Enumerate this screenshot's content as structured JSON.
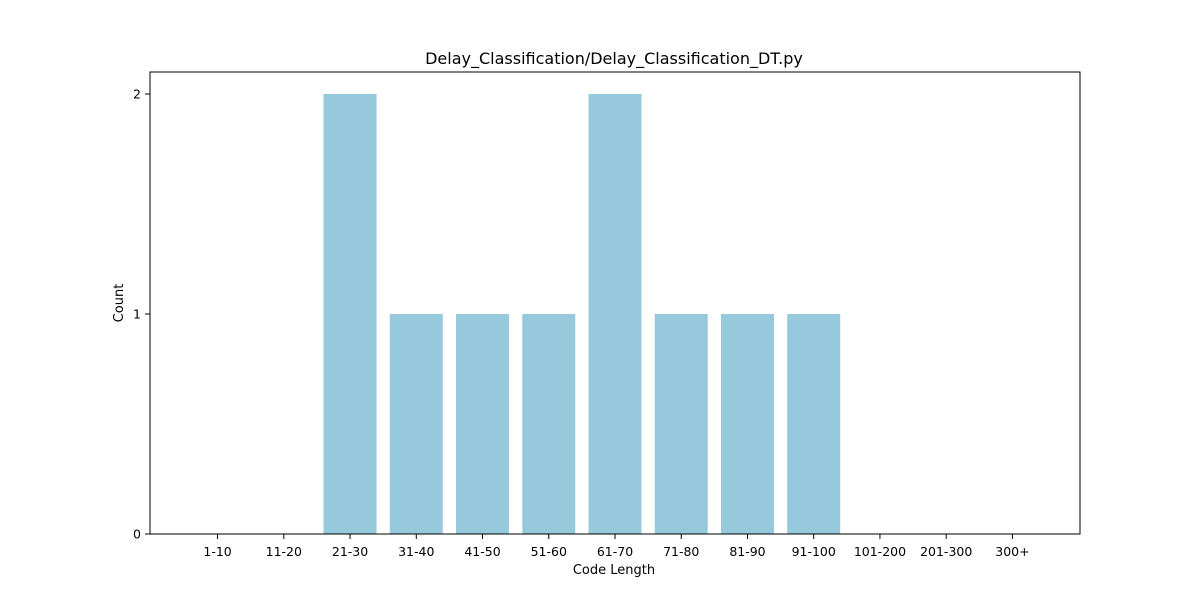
{
  "colors": {
    "bar": "#96c9dc",
    "axes": "#000000",
    "background": "#ffffff"
  },
  "chart_data": {
    "type": "bar",
    "title": "Delay_Classification/Delay_Classification_DT.py",
    "xlabel": "Code Length",
    "ylabel": "Count",
    "categories": [
      "1-10",
      "11-20",
      "21-30",
      "31-40",
      "41-50",
      "51-60",
      "61-70",
      "71-80",
      "81-90",
      "91-100",
      "101-200",
      "201-300",
      "300+"
    ],
    "values": [
      0,
      0,
      2,
      1,
      1,
      1,
      2,
      1,
      1,
      1,
      0,
      0,
      0
    ],
    "yticks": [
      0,
      1,
      2
    ],
    "ylim": [
      0,
      2.1
    ],
    "grid": false,
    "legend": "none"
  }
}
